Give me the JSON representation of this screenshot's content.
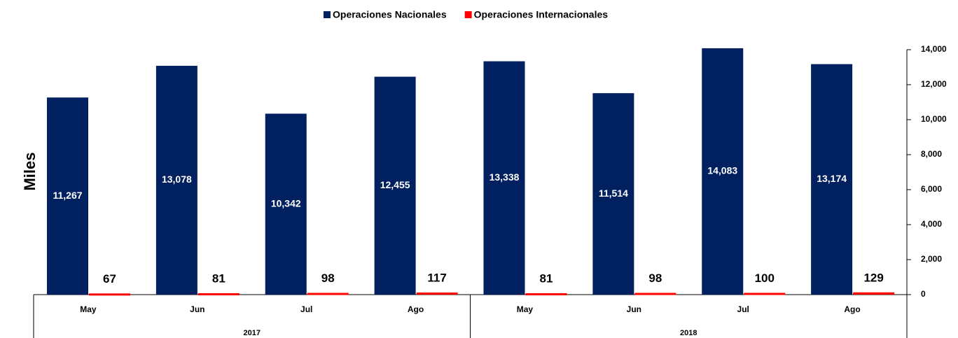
{
  "chart_data": {
    "type": "bar",
    "y_axis_label": "Miles",
    "categories": [
      "May",
      "Jun",
      "Jul",
      "Ago",
      "May",
      "Jun",
      "Jul",
      "Ago"
    ],
    "years": [
      "2017",
      "2018"
    ],
    "series": [
      {
        "name": "Operaciones Nacionales",
        "color": "#002060",
        "values": [
          11267,
          13078,
          10342,
          12455,
          13338,
          11514,
          14083,
          13174
        ],
        "value_labels": [
          "11,267",
          "13,078",
          "10,342",
          "12,455",
          "13,338",
          "11,514",
          "14,083",
          "13,174"
        ]
      },
      {
        "name": "Operaciones Internacionales",
        "color": "#ff0000",
        "values": [
          67,
          81,
          98,
          117,
          81,
          98,
          100,
          129
        ]
      }
    ],
    "ylim": [
      0,
      14000
    ],
    "yticks": [
      0,
      {
        "value": 2000,
        "label": "2,000"
      },
      {
        "value": 4000,
        "label": "4,000"
      },
      {
        "value": 6000,
        "label": "6,000"
      },
      {
        "value": 8000,
        "label": "8,000"
      },
      {
        "value": 10000,
        "label": "10,000"
      },
      {
        "value": 12000,
        "label": "12,000"
      },
      {
        "value": 14000,
        "label": "14,000"
      }
    ],
    "legend": "top"
  }
}
